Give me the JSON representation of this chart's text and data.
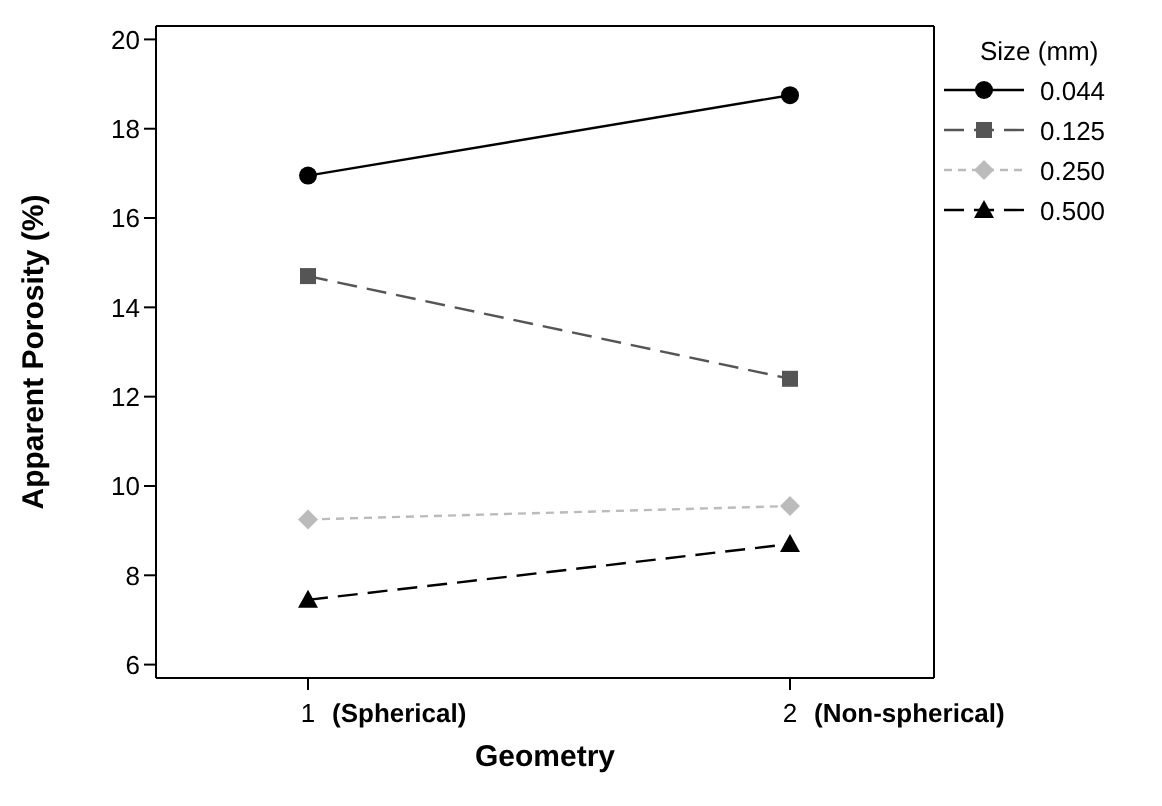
{
  "chart_data": {
    "type": "line",
    "xlabel": "Geometry",
    "ylabel": "Apparent Porosity (%)",
    "legend_title": "Size (mm)",
    "legend": "right",
    "grid": false,
    "categories": [
      "1",
      "2"
    ],
    "annotations": [
      "(Spherical)",
      "(Non-spherical)"
    ],
    "ylim": [
      5.7,
      20.3
    ],
    "yticks": [
      6,
      8,
      10,
      12,
      14,
      16,
      18,
      20
    ],
    "series": [
      {
        "name": "0.044",
        "color": "#000000",
        "values": [
          16.95,
          18.75
        ],
        "marker": "circle",
        "line_style": "solid"
      },
      {
        "name": "0.125",
        "color": "#555555",
        "values": [
          14.7,
          12.4
        ],
        "marker": "square",
        "line_style": "dashed"
      },
      {
        "name": "0.250",
        "color": "#bbbbbb",
        "values": [
          9.25,
          9.55
        ],
        "marker": "diamond",
        "line_style": "dotted"
      },
      {
        "name": "0.500",
        "color": "#000000",
        "values": [
          7.45,
          8.7
        ],
        "marker": "triangle",
        "line_style": "dashed"
      }
    ]
  }
}
